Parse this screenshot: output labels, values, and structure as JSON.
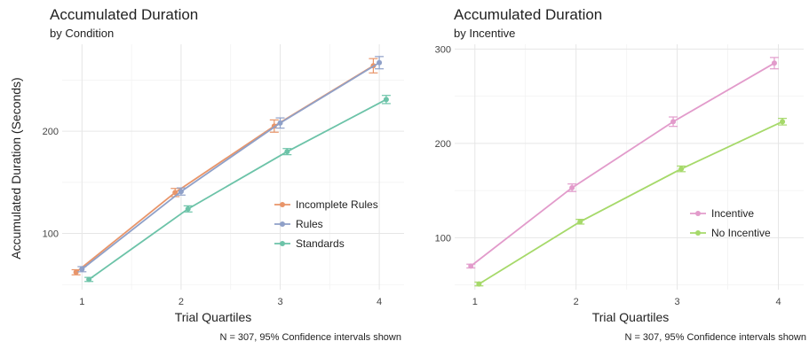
{
  "chart_data": [
    {
      "type": "line",
      "title": "Accumulated Duration",
      "subtitle": "by Condition",
      "xlabel": "Trial Quartiles",
      "ylabel": "Accumulated Duration (Seconds)",
      "caption": "N = 307, 95% Confidence intervals shown",
      "categories": [
        1,
        2,
        3,
        4
      ],
      "xlim": [
        0.8,
        4.25
      ],
      "ylim": [
        45,
        285
      ],
      "yticks": [
        100,
        200
      ],
      "grid": true,
      "legend_position": "right",
      "series": [
        {
          "name": "Incomplete Rules",
          "color": "#E8956A",
          "offset": -0.06,
          "values": [
            62,
            140,
            205,
            264
          ],
          "ci": [
            2.5,
            4,
            6,
            7
          ]
        },
        {
          "name": "Rules",
          "color": "#8FA0C8",
          "offset": 0.0,
          "values": [
            65,
            141,
            208,
            267
          ],
          "ci": [
            2.5,
            3.5,
            5,
            6
          ]
        },
        {
          "name": "Standards",
          "color": "#6CC3A8",
          "offset": 0.07,
          "values": [
            55,
            124,
            180,
            231
          ],
          "ci": [
            2,
            3,
            3,
            4
          ]
        }
      ]
    },
    {
      "type": "line",
      "title": "Accumulated Duration",
      "subtitle": "by Incentive",
      "xlabel": "Trial Quartiles",
      "ylabel": "",
      "caption": "N = 307, 95% Confidence intervals shown",
      "categories": [
        1,
        2,
        3,
        4
      ],
      "xlim": [
        0.8,
        4.25
      ],
      "ylim": [
        45,
        305
      ],
      "yticks": [
        100,
        200,
        300
      ],
      "grid": true,
      "legend_position": "right",
      "series": [
        {
          "name": "Incentive",
          "color": "#E29BCB",
          "offset": -0.04,
          "values": [
            70,
            153,
            223,
            285
          ],
          "ci": [
            2,
            4,
            5,
            6
          ]
        },
        {
          "name": "No Incentive",
          "color": "#A6D96A",
          "offset": 0.04,
          "values": [
            51,
            117,
            173,
            223
          ],
          "ci": [
            2,
            2.5,
            3,
            3.5
          ]
        }
      ]
    }
  ]
}
